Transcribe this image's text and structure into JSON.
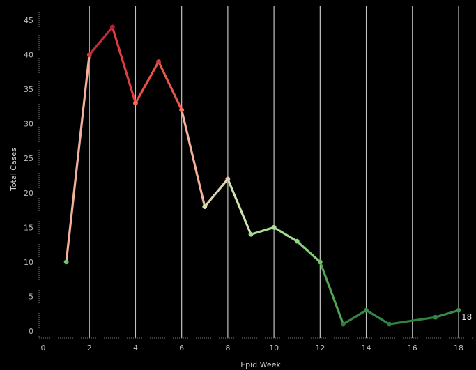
{
  "chart_data": {
    "type": "line",
    "title": "",
    "xlabel": "Epid Week",
    "ylabel": "Total Cases",
    "xlim": [
      0,
      18
    ],
    "ylim": [
      0,
      46
    ],
    "x_ticks": [
      0,
      2,
      4,
      6,
      8,
      10,
      12,
      14,
      16,
      18
    ],
    "y_ticks": [
      0,
      5,
      10,
      15,
      20,
      25,
      30,
      35,
      40,
      45
    ],
    "grid": "vertical",
    "series": [
      {
        "x": [
          1,
          2,
          3,
          4,
          5,
          6,
          7,
          8,
          9,
          10,
          11,
          12,
          13,
          14,
          15,
          17,
          18
        ],
        "values": [
          10,
          40,
          44,
          33,
          39,
          32,
          18,
          22,
          14,
          15,
          13,
          10,
          1,
          3,
          1,
          2,
          3
        ]
      }
    ],
    "end_label": "18",
    "colors": {
      "background": "#000000",
      "gridline": "#d9d9d9",
      "scale": [
        "#b81d3c",
        "#e03a3e",
        "#f06b58",
        "#f49a80",
        "#f0c7b0",
        "#c8e8b0",
        "#86d07a",
        "#58ab57",
        "#2e7d3e"
      ]
    }
  }
}
